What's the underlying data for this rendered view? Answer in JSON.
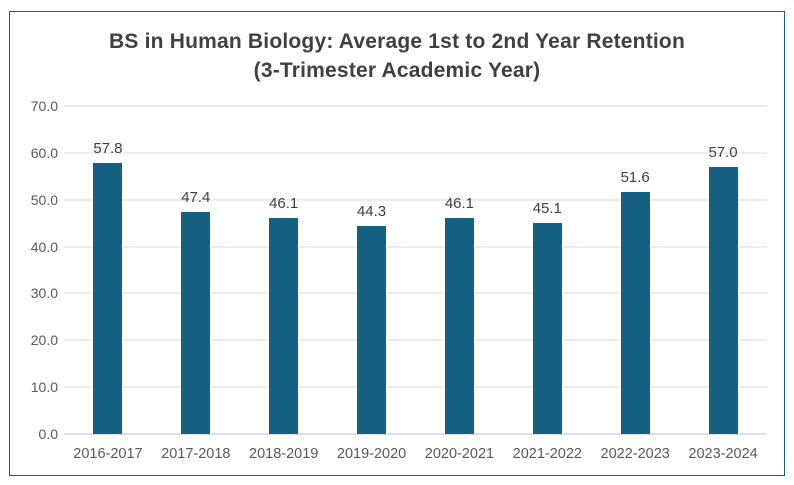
{
  "chart_data": {
    "type": "bar",
    "title": "BS in Human Biology: Average 1st to 2nd Year Retention (3-Trimester Academic Year)",
    "title_lines": [
      "BS in Human Biology: Average 1st to 2nd Year Retention",
      "(3-Trimester Academic Year)"
    ],
    "categories": [
      "2016-2017",
      "2017-2018",
      "2018-2019",
      "2019-2020",
      "2020-2021",
      "2021-2022",
      "2022-2023",
      "2023-2024"
    ],
    "values": [
      57.8,
      47.4,
      46.1,
      44.3,
      46.1,
      45.1,
      51.6,
      57.0
    ],
    "data_labels": [
      "57.8",
      "47.4",
      "46.1",
      "44.3",
      "46.1",
      "45.1",
      "51.6",
      "57.0"
    ],
    "xlabel": "",
    "ylabel": "",
    "ylim": [
      0,
      70
    ],
    "ytick_step": 10,
    "ytick_labels": [
      "0.0",
      "10.0",
      "20.0",
      "30.0",
      "40.0",
      "50.0",
      "60.0",
      "70.0"
    ],
    "grid": true,
    "legend": false,
    "colors": {
      "bar": "#156082",
      "frame_border": "#156082",
      "gridline": "#D9D9D9",
      "axis_line": "#BFBFBF",
      "title": "#404040",
      "tick_label": "#595959",
      "data_label": "#404040",
      "background": "#FFFFFF"
    }
  }
}
